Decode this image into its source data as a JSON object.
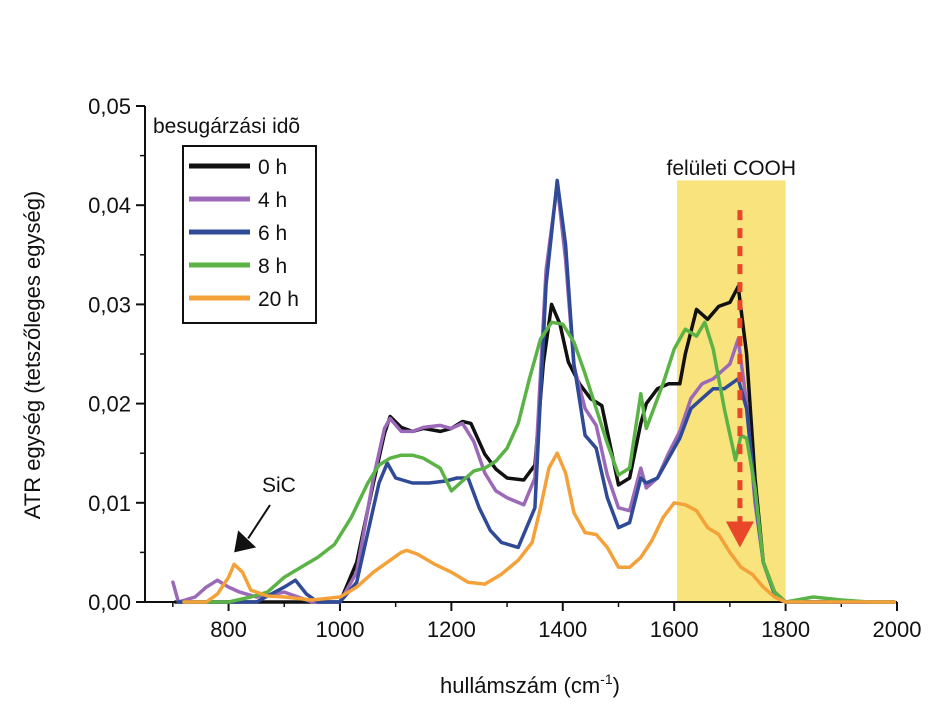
{
  "chart_data": {
    "type": "line",
    "ylabel": "ATR egység (tetszőleges egység)",
    "xlabel_main": "hullámszám (cm",
    "xlabel_sup": "-1",
    "xlabel_close": ")",
    "xlim": [
      650,
      2000
    ],
    "ylim": [
      0,
      0.05
    ],
    "x_ticks": [
      800,
      1000,
      1200,
      1400,
      1600,
      1800,
      2000
    ],
    "y_ticks": [
      0,
      0.01,
      0.02,
      0.03,
      0.04,
      0.05
    ],
    "y_tick_labels": [
      "0,00",
      "0,01",
      "0,02",
      "0,03",
      "0,04",
      "0,05"
    ],
    "legend_title": "besugárzási idõ",
    "legend_position": "top-left",
    "annotations": {
      "sic_label": "SiC",
      "sic_arrow_target": [
        810,
        0.005
      ],
      "cooh_label": "felületi COOH",
      "cooh_band_x": [
        1605,
        1800
      ],
      "cooh_band_color": "#F8E37C",
      "cooh_arrow_x": 1718,
      "cooh_arrow_y": [
        0.0395,
        0.0055
      ],
      "cooh_arrow_color": "#E8472A"
    },
    "series": [
      {
        "name": "0 h",
        "color": "#111111",
        "points": [
          [
            705,
            0.0
          ],
          [
            760,
            0.0
          ],
          [
            800,
            0.0
          ],
          [
            850,
            0.0
          ],
          [
            900,
            0.0
          ],
          [
            950,
            0.0
          ],
          [
            1000,
            0.0
          ],
          [
            1030,
            0.004
          ],
          [
            1060,
            0.012
          ],
          [
            1080,
            0.017
          ],
          [
            1090,
            0.0187
          ],
          [
            1110,
            0.0176
          ],
          [
            1130,
            0.0172
          ],
          [
            1150,
            0.0175
          ],
          [
            1180,
            0.0172
          ],
          [
            1200,
            0.0175
          ],
          [
            1220,
            0.0182
          ],
          [
            1235,
            0.018
          ],
          [
            1260,
            0.0149
          ],
          [
            1280,
            0.0134
          ],
          [
            1300,
            0.0125
          ],
          [
            1330,
            0.0123
          ],
          [
            1350,
            0.0138
          ],
          [
            1365,
            0.024
          ],
          [
            1380,
            0.03
          ],
          [
            1395,
            0.028
          ],
          [
            1410,
            0.0242
          ],
          [
            1430,
            0.022
          ],
          [
            1450,
            0.0205
          ],
          [
            1470,
            0.0198
          ],
          [
            1490,
            0.0145
          ],
          [
            1500,
            0.0118
          ],
          [
            1520,
            0.0125
          ],
          [
            1540,
            0.018
          ],
          [
            1550,
            0.02
          ],
          [
            1570,
            0.0215
          ],
          [
            1590,
            0.022
          ],
          [
            1610,
            0.022
          ],
          [
            1620,
            0.025
          ],
          [
            1640,
            0.0295
          ],
          [
            1660,
            0.0285
          ],
          [
            1680,
            0.0298
          ],
          [
            1700,
            0.0302
          ],
          [
            1715,
            0.0318
          ],
          [
            1730,
            0.025
          ],
          [
            1745,
            0.0125
          ],
          [
            1760,
            0.004
          ],
          [
            1780,
            0.001
          ],
          [
            1800,
            0.0
          ],
          [
            1850,
            0.0
          ],
          [
            1900,
            0.0
          ],
          [
            1950,
            0.0
          ],
          [
            1995,
            0.0
          ]
        ]
      },
      {
        "name": "4 h",
        "color": "#9B69B8",
        "points": [
          [
            700,
            0.002
          ],
          [
            710,
            0.0
          ],
          [
            740,
            0.0005
          ],
          [
            760,
            0.0015
          ],
          [
            780,
            0.0022
          ],
          [
            800,
            0.0015
          ],
          [
            820,
            0.001
          ],
          [
            850,
            0.0005
          ],
          [
            900,
            0.001
          ],
          [
            950,
            0.0
          ],
          [
            1000,
            0.0
          ],
          [
            1030,
            0.003
          ],
          [
            1060,
            0.0125
          ],
          [
            1080,
            0.0175
          ],
          [
            1090,
            0.0185
          ],
          [
            1110,
            0.0172
          ],
          [
            1130,
            0.0172
          ],
          [
            1150,
            0.0176
          ],
          [
            1180,
            0.0178
          ],
          [
            1200,
            0.0175
          ],
          [
            1220,
            0.018
          ],
          [
            1240,
            0.0162
          ],
          [
            1260,
            0.013
          ],
          [
            1280,
            0.0112
          ],
          [
            1300,
            0.0105
          ],
          [
            1330,
            0.0098
          ],
          [
            1350,
            0.0125
          ],
          [
            1370,
            0.0335
          ],
          [
            1390,
            0.042
          ],
          [
            1405,
            0.0345
          ],
          [
            1420,
            0.0238
          ],
          [
            1440,
            0.0195
          ],
          [
            1460,
            0.0178
          ],
          [
            1480,
            0.0128
          ],
          [
            1500,
            0.0095
          ],
          [
            1520,
            0.0092
          ],
          [
            1540,
            0.0135
          ],
          [
            1550,
            0.0115
          ],
          [
            1570,
            0.0125
          ],
          [
            1590,
            0.015
          ],
          [
            1610,
            0.0172
          ],
          [
            1630,
            0.0205
          ],
          [
            1650,
            0.022
          ],
          [
            1670,
            0.0225
          ],
          [
            1690,
            0.0235
          ],
          [
            1700,
            0.024
          ],
          [
            1715,
            0.0265
          ],
          [
            1730,
            0.02
          ],
          [
            1745,
            0.01
          ],
          [
            1760,
            0.004
          ],
          [
            1780,
            0.0008
          ],
          [
            1800,
            0.0
          ],
          [
            1850,
            0.0
          ],
          [
            1900,
            0.0
          ],
          [
            1950,
            0.0
          ],
          [
            1995,
            0.0
          ]
        ]
      },
      {
        "name": "6 h",
        "color": "#2F4A96",
        "points": [
          [
            710,
            0.0
          ],
          [
            760,
            0.0
          ],
          [
            800,
            0.0
          ],
          [
            850,
            0.0
          ],
          [
            900,
            0.0015
          ],
          [
            920,
            0.0022
          ],
          [
            940,
            0.0008
          ],
          [
            960,
            0.0
          ],
          [
            1000,
            0.0
          ],
          [
            1030,
            0.002
          ],
          [
            1050,
            0.007
          ],
          [
            1070,
            0.012
          ],
          [
            1085,
            0.014
          ],
          [
            1100,
            0.0125
          ],
          [
            1130,
            0.012
          ],
          [
            1160,
            0.012
          ],
          [
            1190,
            0.0122
          ],
          [
            1210,
            0.0125
          ],
          [
            1230,
            0.0125
          ],
          [
            1250,
            0.0095
          ],
          [
            1270,
            0.0072
          ],
          [
            1290,
            0.006
          ],
          [
            1320,
            0.0055
          ],
          [
            1350,
            0.0095
          ],
          [
            1370,
            0.032
          ],
          [
            1390,
            0.0425
          ],
          [
            1405,
            0.036
          ],
          [
            1420,
            0.024
          ],
          [
            1440,
            0.0168
          ],
          [
            1460,
            0.0155
          ],
          [
            1480,
            0.0105
          ],
          [
            1500,
            0.0075
          ],
          [
            1520,
            0.008
          ],
          [
            1540,
            0.0125
          ],
          [
            1550,
            0.012
          ],
          [
            1570,
            0.0125
          ],
          [
            1590,
            0.0145
          ],
          [
            1610,
            0.0165
          ],
          [
            1630,
            0.0195
          ],
          [
            1650,
            0.0205
          ],
          [
            1670,
            0.0215
          ],
          [
            1690,
            0.0215
          ],
          [
            1715,
            0.0225
          ],
          [
            1730,
            0.0195
          ],
          [
            1745,
            0.011
          ],
          [
            1760,
            0.004
          ],
          [
            1780,
            0.0008
          ],
          [
            1800,
            0.0
          ],
          [
            1850,
            0.0
          ],
          [
            1900,
            0.0
          ],
          [
            1950,
            0.0
          ],
          [
            1995,
            0.0
          ]
        ]
      },
      {
        "name": "8 h",
        "color": "#5BB346",
        "points": [
          [
            720,
            0.0
          ],
          [
            760,
            0.0
          ],
          [
            800,
            0.0
          ],
          [
            840,
            0.0005
          ],
          [
            870,
            0.001
          ],
          [
            900,
            0.0025
          ],
          [
            930,
            0.0035
          ],
          [
            960,
            0.0045
          ],
          [
            990,
            0.0058
          ],
          [
            1020,
            0.0085
          ],
          [
            1050,
            0.012
          ],
          [
            1070,
            0.0138
          ],
          [
            1090,
            0.0145
          ],
          [
            1110,
            0.0148
          ],
          [
            1130,
            0.0148
          ],
          [
            1150,
            0.0145
          ],
          [
            1180,
            0.0135
          ],
          [
            1200,
            0.0112
          ],
          [
            1220,
            0.0122
          ],
          [
            1240,
            0.0132
          ],
          [
            1260,
            0.0135
          ],
          [
            1280,
            0.0142
          ],
          [
            1300,
            0.0155
          ],
          [
            1320,
            0.018
          ],
          [
            1340,
            0.0225
          ],
          [
            1360,
            0.0265
          ],
          [
            1380,
            0.0282
          ],
          [
            1400,
            0.028
          ],
          [
            1420,
            0.0262
          ],
          [
            1440,
            0.023
          ],
          [
            1460,
            0.0195
          ],
          [
            1480,
            0.016
          ],
          [
            1500,
            0.0128
          ],
          [
            1520,
            0.0135
          ],
          [
            1540,
            0.021
          ],
          [
            1550,
            0.0175
          ],
          [
            1560,
            0.019
          ],
          [
            1580,
            0.022
          ],
          [
            1600,
            0.0255
          ],
          [
            1620,
            0.0275
          ],
          [
            1640,
            0.0268
          ],
          [
            1655,
            0.0282
          ],
          [
            1670,
            0.0255
          ],
          [
            1690,
            0.0195
          ],
          [
            1710,
            0.0143
          ],
          [
            1720,
            0.0168
          ],
          [
            1730,
            0.0165
          ],
          [
            1745,
            0.0115
          ],
          [
            1760,
            0.004
          ],
          [
            1780,
            0.001
          ],
          [
            1800,
            0.0
          ],
          [
            1850,
            0.0005
          ],
          [
            1900,
            0.0002
          ],
          [
            1950,
            0.0
          ],
          [
            1995,
            0.0
          ]
        ]
      },
      {
        "name": "20 h",
        "color": "#F5A13A",
        "points": [
          [
            720,
            0.0
          ],
          [
            760,
            0.0
          ],
          [
            780,
            0.0008
          ],
          [
            800,
            0.0025
          ],
          [
            810,
            0.0038
          ],
          [
            825,
            0.003
          ],
          [
            840,
            0.0012
          ],
          [
            870,
            0.0006
          ],
          [
            900,
            0.0005
          ],
          [
            950,
            0.0002
          ],
          [
            1000,
            0.0005
          ],
          [
            1030,
            0.0015
          ],
          [
            1060,
            0.003
          ],
          [
            1090,
            0.0042
          ],
          [
            1110,
            0.005
          ],
          [
            1120,
            0.0052
          ],
          [
            1140,
            0.0048
          ],
          [
            1170,
            0.0038
          ],
          [
            1200,
            0.003
          ],
          [
            1230,
            0.002
          ],
          [
            1260,
            0.0018
          ],
          [
            1290,
            0.0028
          ],
          [
            1320,
            0.0042
          ],
          [
            1345,
            0.006
          ],
          [
            1360,
            0.0095
          ],
          [
            1375,
            0.0135
          ],
          [
            1390,
            0.015
          ],
          [
            1405,
            0.013
          ],
          [
            1420,
            0.009
          ],
          [
            1440,
            0.007
          ],
          [
            1460,
            0.0068
          ],
          [
            1480,
            0.0055
          ],
          [
            1500,
            0.0035
          ],
          [
            1520,
            0.0035
          ],
          [
            1540,
            0.0045
          ],
          [
            1560,
            0.0062
          ],
          [
            1580,
            0.0085
          ],
          [
            1600,
            0.01
          ],
          [
            1620,
            0.0098
          ],
          [
            1640,
            0.0092
          ],
          [
            1660,
            0.0075
          ],
          [
            1680,
            0.0068
          ],
          [
            1700,
            0.005
          ],
          [
            1720,
            0.0035
          ],
          [
            1740,
            0.0028
          ],
          [
            1760,
            0.0015
          ],
          [
            1780,
            0.0005
          ],
          [
            1800,
            0.0
          ],
          [
            1850,
            0.0
          ],
          [
            1900,
            0.0
          ],
          [
            1950,
            0.0
          ],
          [
            1995,
            0.0
          ]
        ]
      }
    ]
  }
}
